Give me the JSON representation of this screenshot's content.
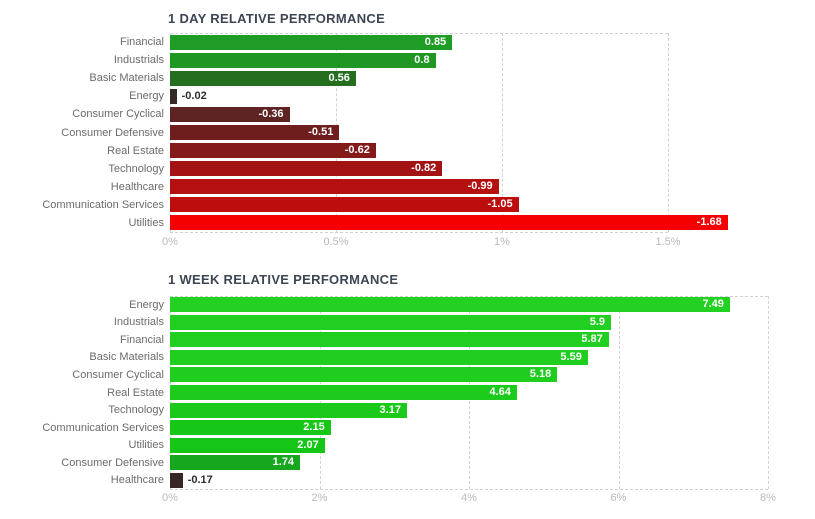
{
  "page": {
    "background": "#ffffff"
  },
  "chart_data": [
    {
      "type": "bar",
      "orientation": "horizontal",
      "title": "1 DAY RELATIVE PERFORMANCE",
      "xlabel": "",
      "ylabel": "",
      "grid": true,
      "legend": false,
      "axis_ticks": [
        "0%",
        "0.5%",
        "1%",
        "1.5%"
      ],
      "axis_range_percent": [
        0,
        1.5
      ],
      "note": "bar length encodes absolute value; sign shown in label and color",
      "categories": [
        "Financial",
        "Industrials",
        "Basic Materials",
        "Energy",
        "Consumer Cyclical",
        "Consumer Defensive",
        "Real Estate",
        "Technology",
        "Healthcare",
        "Communication Services",
        "Utilities"
      ],
      "values": [
        0.85,
        0.8,
        0.56,
        -0.02,
        -0.36,
        -0.51,
        -0.62,
        -0.82,
        -0.99,
        -1.05,
        -1.68
      ],
      "value_labels": [
        "0.85",
        "0.8",
        "0.56",
        "-0.02",
        "-0.36",
        "-0.51",
        "-0.62",
        "-0.82",
        "-0.99",
        "-1.05",
        "-1.68"
      ],
      "bar_colors": [
        "#1e9c26",
        "#1f9722",
        "#256e20",
        "#342a27",
        "#5e2323",
        "#6f1e1e",
        "#851a1a",
        "#a31313",
        "#b51010",
        "#bd0d0d",
        "#f40000"
      ]
    },
    {
      "type": "bar",
      "orientation": "horizontal",
      "title": "1 WEEK RELATIVE PERFORMANCE",
      "xlabel": "",
      "ylabel": "",
      "grid": true,
      "legend": false,
      "axis_ticks": [
        "0%",
        "2%",
        "4%",
        "6%",
        "8%"
      ],
      "axis_range_percent": [
        0,
        8
      ],
      "note": "bar length encodes absolute value; sign shown in label and color",
      "categories": [
        "Energy",
        "Industrials",
        "Financial",
        "Basic Materials",
        "Consumer Cyclical",
        "Real Estate",
        "Technology",
        "Communication Services",
        "Utilities",
        "Consumer Defensive",
        "Healthcare"
      ],
      "values": [
        7.49,
        5.9,
        5.87,
        5.59,
        5.18,
        4.64,
        3.17,
        2.15,
        2.07,
        1.74,
        -0.17
      ],
      "value_labels": [
        "7.49",
        "5.9",
        "5.87",
        "5.59",
        "5.18",
        "4.64",
        "3.17",
        "2.15",
        "2.07",
        "1.74",
        "-0.17"
      ],
      "bar_colors": [
        "#23d123",
        "#21cf21",
        "#21cf21",
        "#20ce20",
        "#1fcd1f",
        "#1dcb1d",
        "#1ac91a",
        "#17c717",
        "#16c616",
        "#17a71f",
        "#382525"
      ]
    }
  ],
  "colors": {
    "title_text": "#3d4653",
    "category_text": "#6b6b6b",
    "tick_text": "#b9b9b9",
    "grid_dash": "#d2d2d2",
    "value_text_inside": "#ffffff",
    "value_text_outside": "#2e2e2e"
  }
}
